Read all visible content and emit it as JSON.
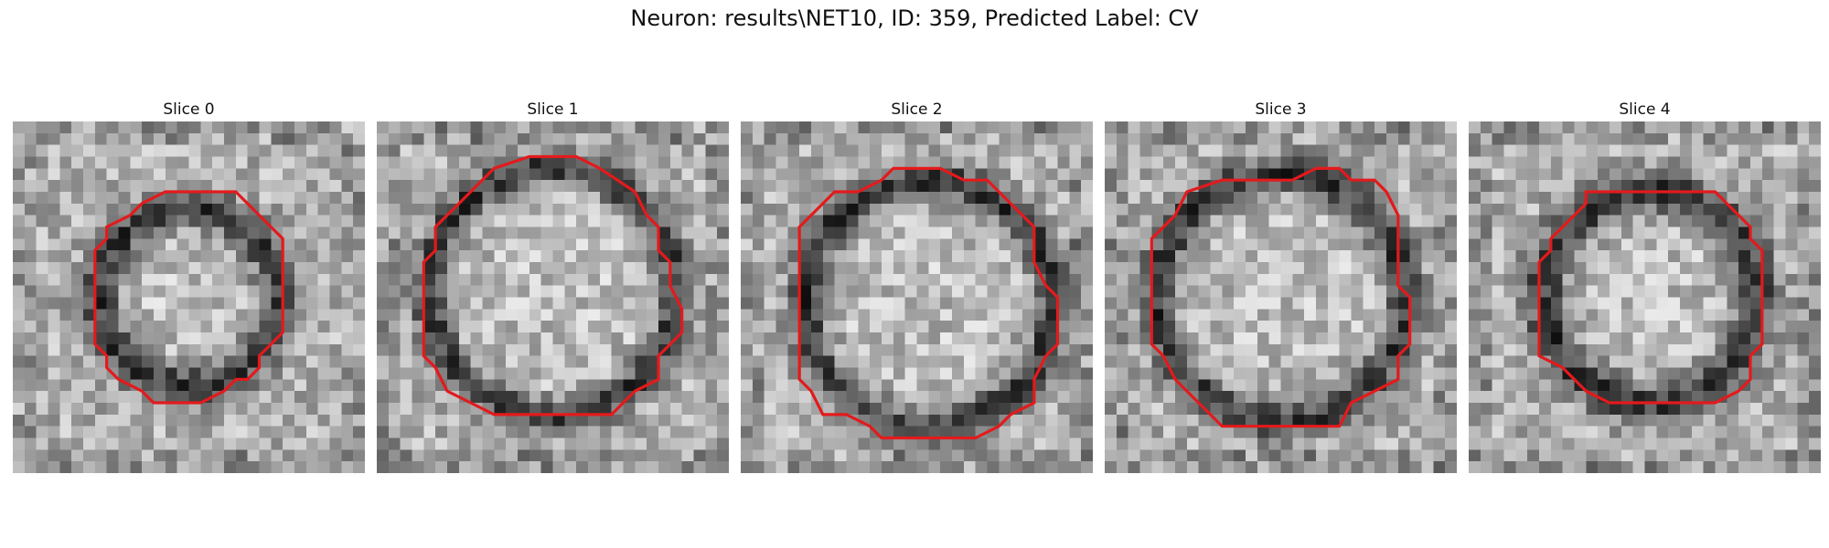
{
  "figure": {
    "title": "Neuron: results\\NET10, ID: 359, Predicted Label: CV"
  },
  "contour_color": "#e31a1c",
  "panels": [
    {
      "title": "Slice 0"
    },
    {
      "title": "Slice 1"
    },
    {
      "title": "Slice 2"
    },
    {
      "title": "Slice 3"
    },
    {
      "title": "Slice 4"
    }
  ]
}
